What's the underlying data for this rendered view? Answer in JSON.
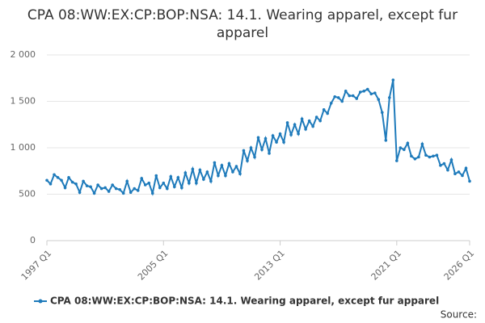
{
  "chart_data": {
    "type": "line",
    "title": "CPA 08:WW:EX:CP:BOP:NSA: 14.1. Wearing apparel, except fur apparel",
    "categories": [
      "1997 Q1",
      null,
      null,
      null,
      null,
      null,
      null,
      null,
      null,
      null,
      null,
      null,
      null,
      null,
      null,
      null,
      null,
      null,
      null,
      null,
      null,
      null,
      null,
      null,
      null,
      null,
      null,
      null,
      null,
      null,
      null,
      null,
      "2005 Q1",
      null,
      null,
      null,
      null,
      null,
      null,
      null,
      null,
      null,
      null,
      null,
      null,
      null,
      null,
      null,
      null,
      null,
      null,
      null,
      null,
      null,
      null,
      null,
      null,
      null,
      null,
      null,
      null,
      null,
      null,
      null,
      "2013 Q1",
      null,
      null,
      null,
      null,
      null,
      null,
      null,
      null,
      null,
      null,
      null,
      null,
      null,
      null,
      null,
      null,
      null,
      null,
      null,
      null,
      null,
      null,
      null,
      null,
      null,
      null,
      null,
      null,
      null,
      null,
      null,
      "2021 Q1",
      null,
      null,
      null,
      null,
      null,
      null,
      null,
      null,
      null,
      null,
      null,
      null,
      null,
      null,
      null,
      null,
      null,
      null,
      null,
      "2026 Q1"
    ],
    "series": [
      {
        "name": "CPA 08:WW:EX:CP:BOP:NSA: 14.1. Wearing apparel, except fur apparel",
        "color": "#1f7bbb",
        "values": [
          650,
          610,
          710,
          680,
          650,
          570,
          680,
          630,
          610,
          520,
          640,
          590,
          580,
          510,
          600,
          560,
          570,
          530,
          600,
          560,
          550,
          510,
          640,
          520,
          560,
          540,
          670,
          600,
          620,
          510,
          700,
          570,
          620,
          560,
          690,
          580,
          680,
          570,
          730,
          620,
          770,
          620,
          760,
          660,
          740,
          640,
          840,
          700,
          810,
          700,
          830,
          740,
          800,
          720,
          970,
          860,
          1000,
          900,
          1110,
          980,
          1100,
          940,
          1130,
          1060,
          1150,
          1060,
          1270,
          1140,
          1250,
          1150,
          1310,
          1200,
          1290,
          1230,
          1330,
          1290,
          1410,
          1370,
          1480,
          1550,
          1540,
          1500,
          1610,
          1560,
          1560,
          1530,
          1600,
          1610,
          1630,
          1580,
          1590,
          1520,
          1380,
          1080,
          1540,
          1730,
          860,
          1000,
          980,
          1050,
          910,
          880,
          900,
          1040,
          920,
          900,
          910,
          920,
          810,
          830,
          760,
          870,
          720,
          740,
          700,
          780,
          640
        ]
      }
    ],
    "ylim": [
      0,
      2000
    ],
    "yticks": [
      0,
      500,
      {
        "value": 1000,
        "label": "1 000"
      },
      {
        "value": 1500,
        "label": "1 500"
      },
      {
        "value": 2000,
        "label": "2 000"
      }
    ],
    "grid": true,
    "legend": "bottom",
    "source": "Source:"
  }
}
